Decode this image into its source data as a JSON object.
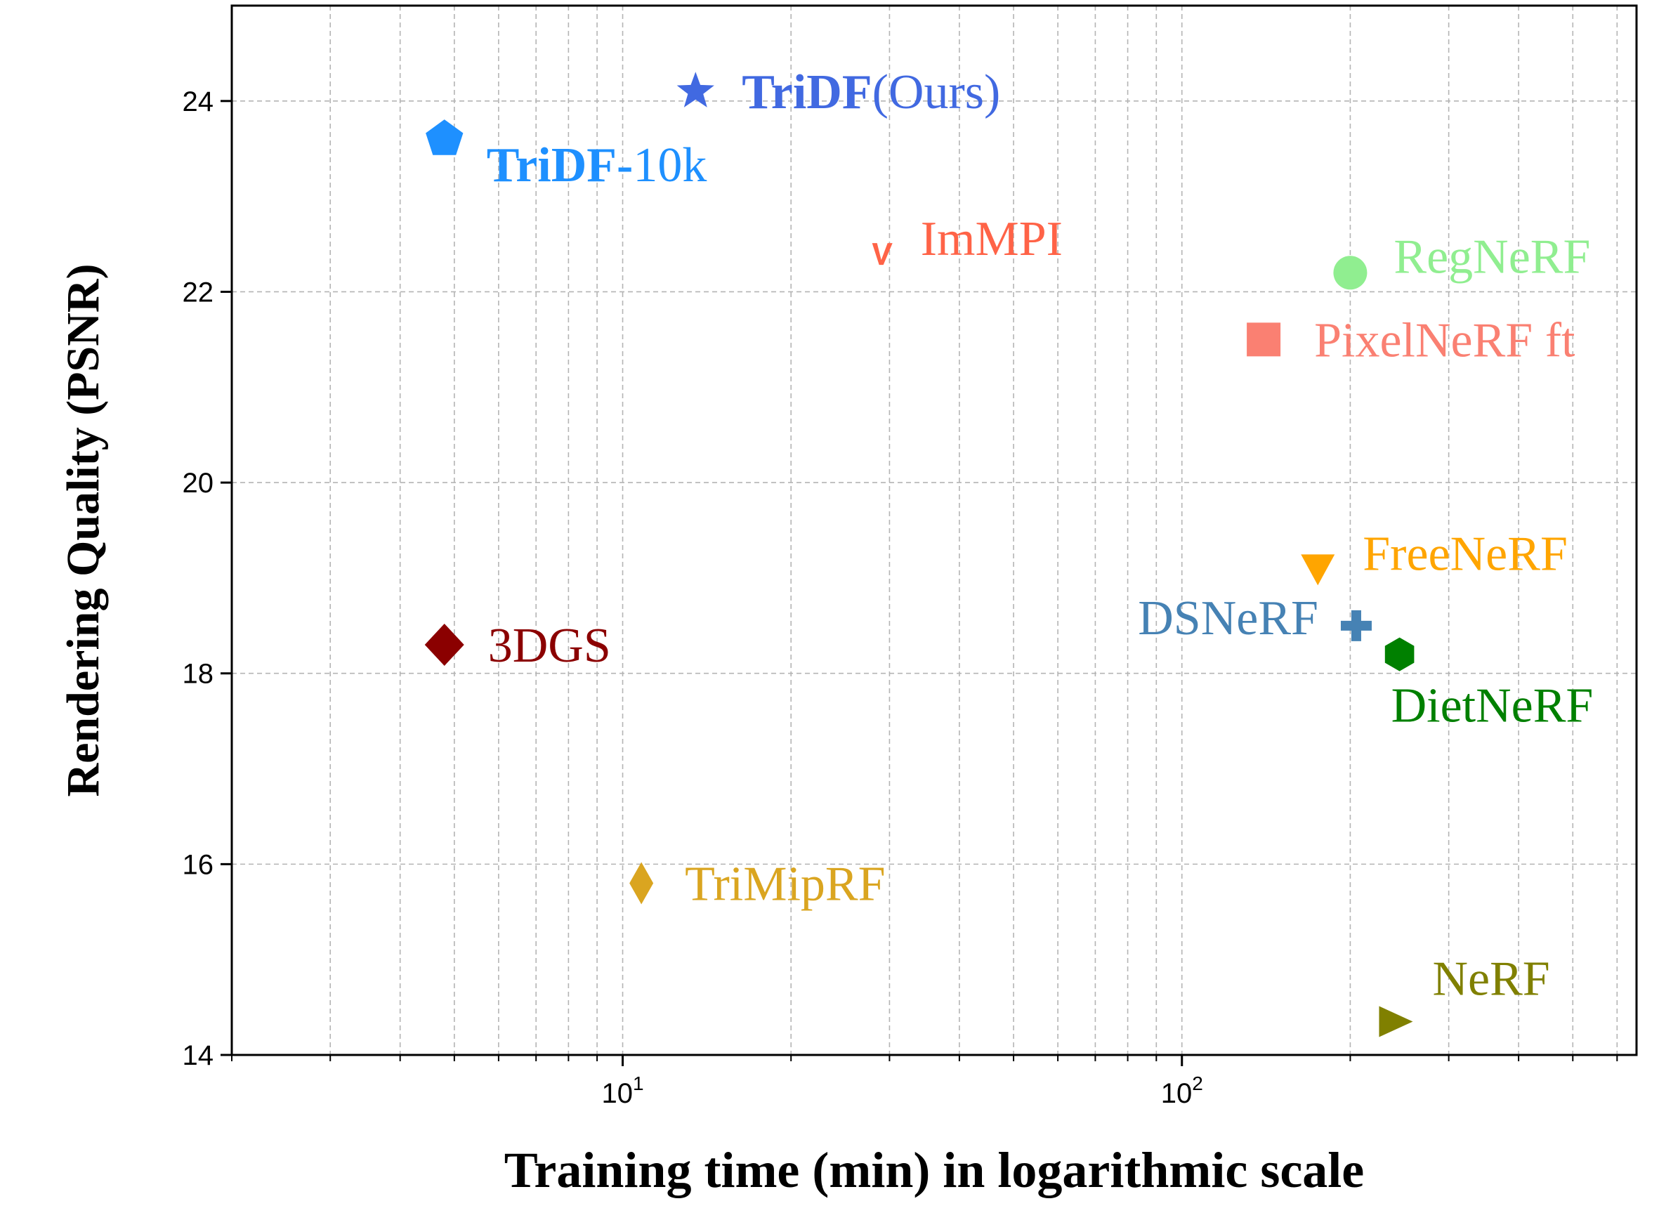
{
  "chart_data": {
    "type": "scatter",
    "xscale": "log",
    "xlabel": "Training time (min) in logarithmic scale",
    "ylabel": "Rendering Quality (PSNR)",
    "xlim": [
      2.0,
      650
    ],
    "ylim": [
      14,
      25
    ],
    "grid": true,
    "yticks": [
      14,
      16,
      18,
      20,
      22,
      24
    ],
    "xticks_major": [
      {
        "value": 10,
        "base": "10",
        "exp": "1"
      },
      {
        "value": 100,
        "base": "10",
        "exp": "2"
      }
    ],
    "points": [
      {
        "name": "TriDF",
        "suffix": "(Ours)",
        "bold": true,
        "x": 13.5,
        "y": 24.1,
        "marker": "star",
        "color": "#4169e1"
      },
      {
        "name": "TriDF-",
        "suffix": "10k",
        "bold": true,
        "x": 4.8,
        "y": 23.6,
        "marker": "pentagon",
        "color": "#1e90ff"
      },
      {
        "name": "ImMPI",
        "suffix": "",
        "bold": false,
        "x": 29,
        "y": 22.4,
        "marker": "v",
        "color": "#ff6347"
      },
      {
        "name": "RegNeRF",
        "suffix": "",
        "bold": false,
        "x": 200,
        "y": 22.2,
        "marker": "circle",
        "color": "#90ee90"
      },
      {
        "name": "PixelNeRF ft",
        "suffix": "",
        "bold": false,
        "x": 140,
        "y": 21.5,
        "marker": "square",
        "color": "#fa8072"
      },
      {
        "name": "FreeNeRF",
        "suffix": "",
        "bold": false,
        "x": 175,
        "y": 19.1,
        "marker": "triangle-down",
        "color": "#ffa500"
      },
      {
        "name": "DSNeRF",
        "suffix": "",
        "bold": false,
        "x": 205,
        "y": 18.5,
        "marker": "plus",
        "color": "#4682b4"
      },
      {
        "name": "DietNeRF",
        "suffix": "",
        "bold": false,
        "x": 245,
        "y": 18.2,
        "marker": "hexagon",
        "color": "#008000"
      },
      {
        "name": "3DGS",
        "suffix": "",
        "bold": false,
        "x": 4.8,
        "y": 18.3,
        "marker": "diamond",
        "color": "#8b0000"
      },
      {
        "name": "TriMipRF",
        "suffix": "",
        "bold": false,
        "x": 10.8,
        "y": 15.8,
        "marker": "thin-diamond",
        "color": "#daa520"
      },
      {
        "name": "NeRF",
        "suffix": "",
        "bold": false,
        "x": 240,
        "y": 14.35,
        "marker": "triangle-right",
        "color": "#808000"
      }
    ]
  }
}
